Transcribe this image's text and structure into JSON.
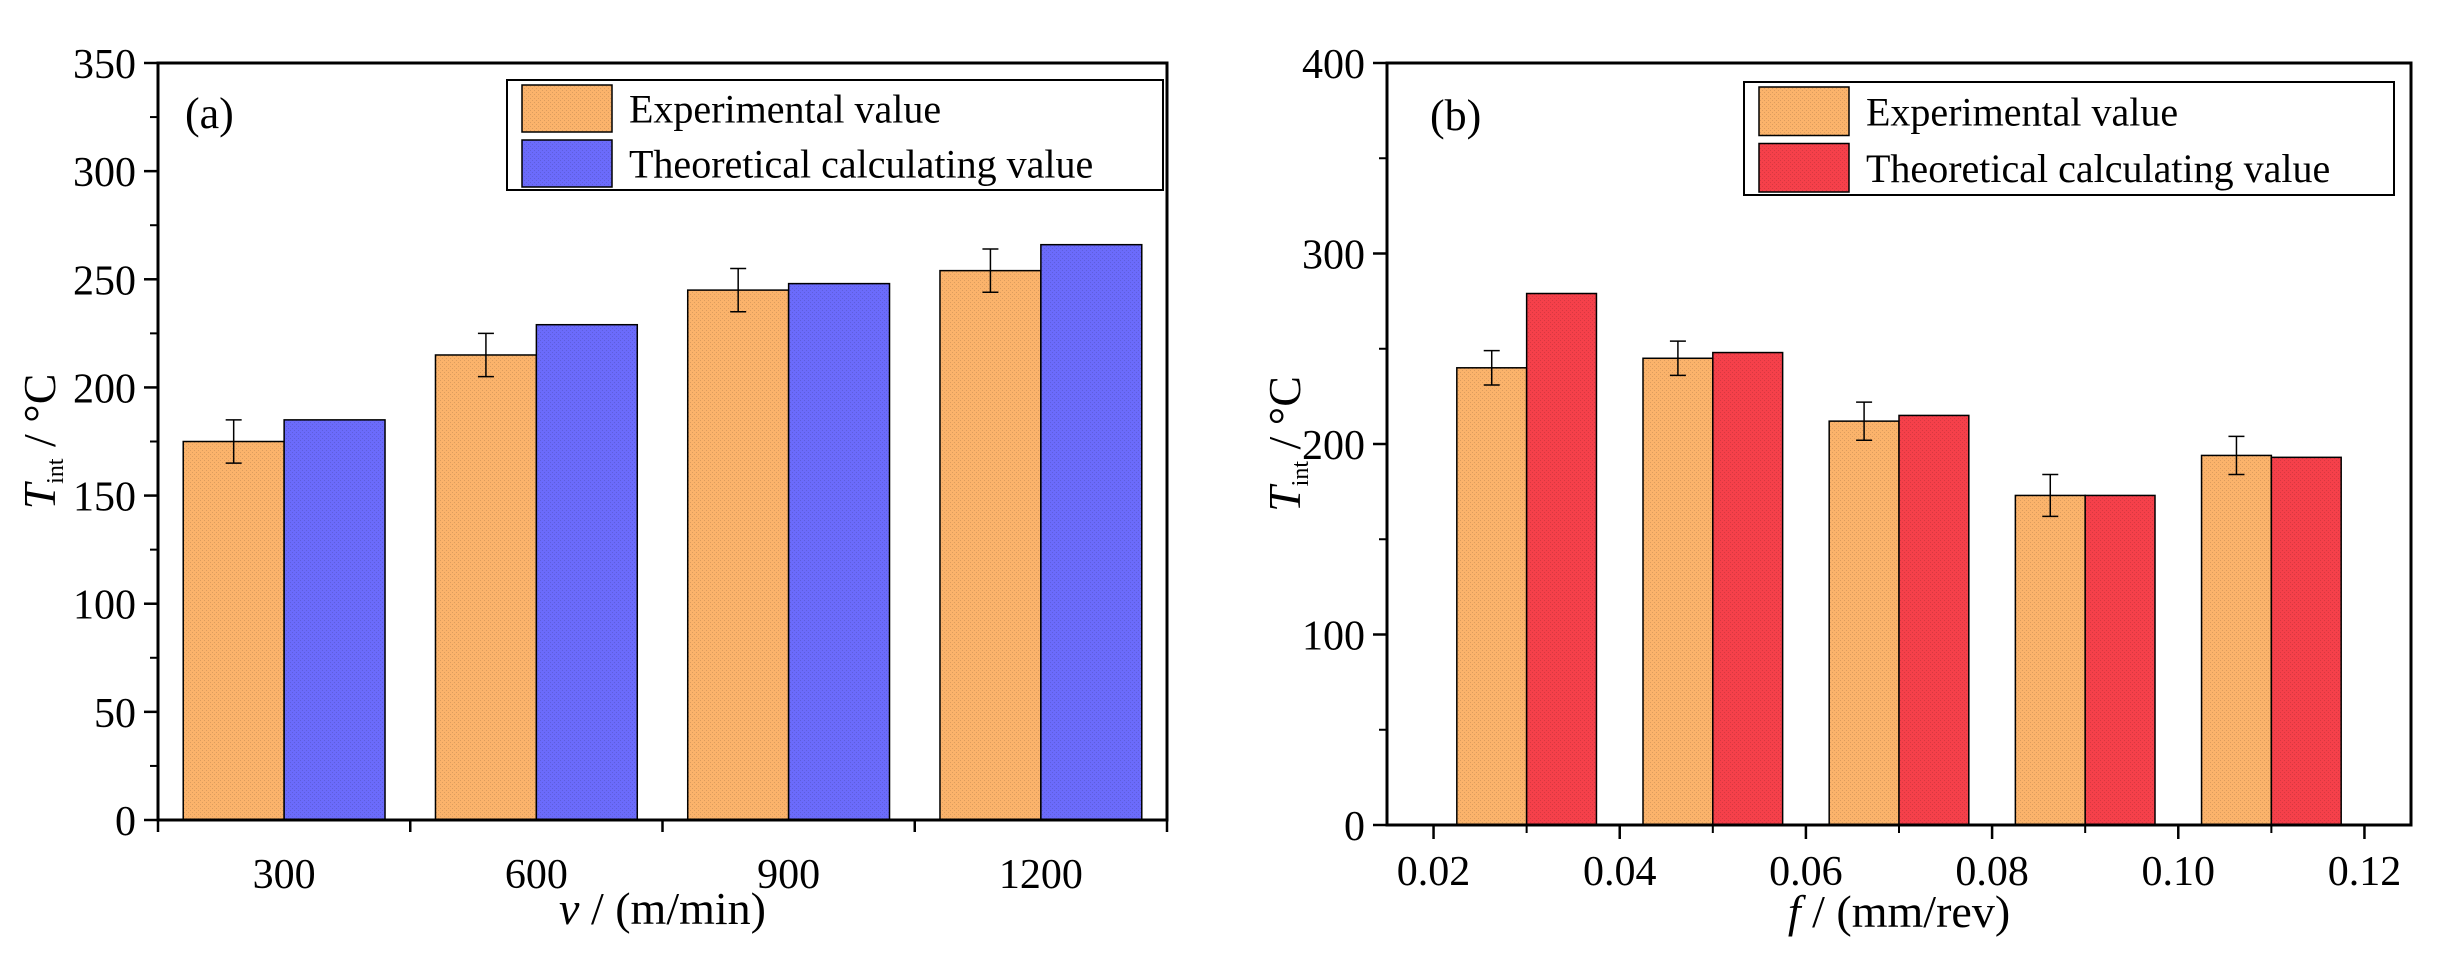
{
  "chart_data": [
    {
      "type": "bar",
      "panel_label": "(a)",
      "categories": [
        "300",
        "600",
        "900",
        "1200"
      ],
      "xlabel": {
        "var": "v",
        "unit": " / (m/min)"
      },
      "ylabel": {
        "var": "T",
        "sub": "int",
        "unit": " / °C"
      },
      "ylim": [
        0,
        350
      ],
      "yticks": [
        0,
        50,
        100,
        150,
        200,
        250,
        300,
        350
      ],
      "legend_position": "top-right",
      "series": [
        {
          "name": "Experimental value",
          "values": [
            175,
            215,
            245,
            254
          ],
          "errors": [
            10,
            10,
            10,
            10
          ],
          "color": "#FBB36B"
        },
        {
          "name": "Theoretical calculating value",
          "values": [
            185,
            229,
            248,
            266
          ],
          "color": "#6B6BFB"
        }
      ]
    },
    {
      "type": "bar",
      "panel_label": "(b)",
      "x": [
        0.03,
        0.05,
        0.07,
        0.09,
        0.11
      ],
      "xlabel": {
        "var": "f",
        "unit": " / (mm/rev)"
      },
      "ylabel": {
        "var": "T",
        "sub": "int",
        "unit": " / °C"
      },
      "xlim": [
        0.015,
        0.125
      ],
      "xticks": [
        "0.02",
        "0.04",
        "0.06",
        "0.08",
        "0.10",
        "0.12"
      ],
      "ylim": [
        0,
        400
      ],
      "yticks": [
        0,
        100,
        200,
        300,
        400
      ],
      "legend_position": "top-right",
      "series": [
        {
          "name": "Experimental value",
          "values": [
            240,
            245,
            212,
            173,
            194
          ],
          "errors": [
            9,
            9,
            10,
            11,
            10
          ],
          "color": "#FBB36B"
        },
        {
          "name": "Theoretical calculating value",
          "values": [
            279,
            248,
            215,
            173,
            193
          ],
          "color": "#F5404A"
        }
      ]
    }
  ]
}
